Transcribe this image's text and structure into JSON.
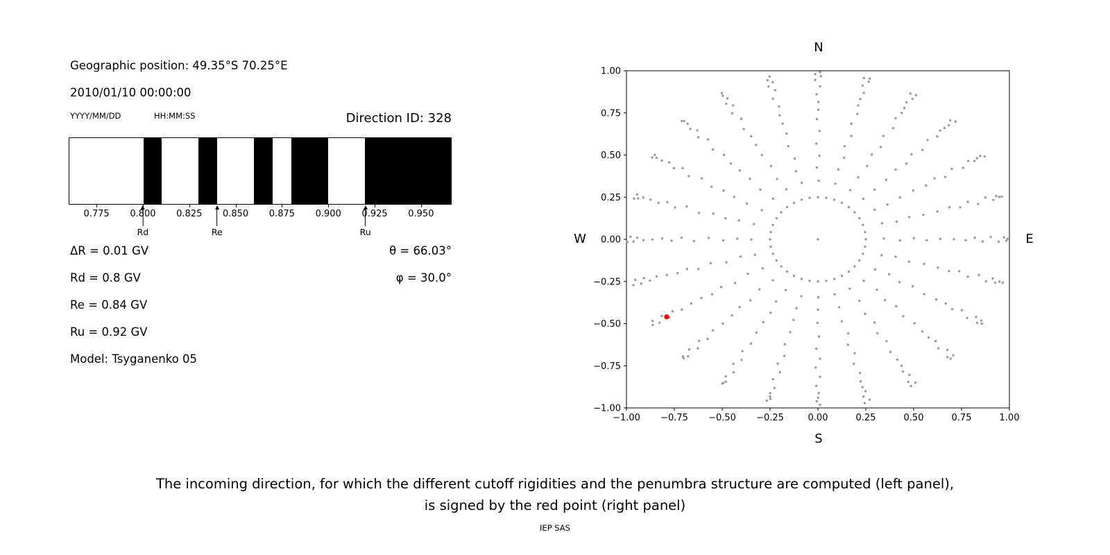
{
  "canvas": {
    "background": "#ffffff"
  },
  "left_panel": {
    "geographic_position": "Geographic position: 49.35°S 70.25°E",
    "datetime": "2010/01/10 00:00:00",
    "date_format_label": "YYYY/MM/DD",
    "time_format_label": "HH:MM:SS",
    "direction_id": "Direction ID: 328",
    "results": [
      "ΔR = 0.01 GV",
      "Rd = 0.8 GV",
      "Re = 0.84 GV",
      "Ru = 0.92 GV",
      "Model: Tsyganenko 05"
    ],
    "theta": "θ = 66.03°",
    "phi": "φ = 30.0°"
  },
  "right_panel": {
    "compass": {
      "north": "N",
      "south": "S",
      "east": "E",
      "west": "W"
    }
  },
  "caption": {
    "line1": "The incoming direction, for which the different cutoff rigidities and the penumbra structure are computed (left panel),",
    "line2": "is signed by the red point (right panel)"
  },
  "footer": "IEP SAS",
  "chart_data": [
    {
      "name": "penumbra-structure",
      "type": "bar",
      "xlim": [
        0.76,
        0.9665
      ],
      "xticks": [
        0.775,
        0.8,
        0.825,
        0.85,
        0.875,
        0.9,
        0.925,
        0.95
      ],
      "xtick_labels": [
        "0.775",
        "0.800",
        "0.825",
        "0.850",
        "0.875",
        "0.900",
        "0.925",
        "0.950"
      ],
      "forbidden_bands_gv": [
        [
          0.8,
          0.81
        ],
        [
          0.83,
          0.84
        ],
        [
          0.86,
          0.87
        ],
        [
          0.88,
          0.9
        ],
        [
          0.92,
          0.9665
        ]
      ],
      "markers": [
        {
          "label": "Rd",
          "value_gv": 0.8
        },
        {
          "label": "Re",
          "value_gv": 0.84
        },
        {
          "label": "Ru",
          "value_gv": 0.92
        }
      ],
      "band_color": "#000000"
    },
    {
      "name": "incoming-directions",
      "type": "scatter",
      "xlim": [
        -1.0,
        1.0
      ],
      "ylim": [
        -1.0,
        1.0
      ],
      "xticks": [
        -1.0,
        -0.75,
        -0.5,
        -0.25,
        0.0,
        0.25,
        0.5,
        0.75,
        1.0
      ],
      "yticks": [
        -1.0,
        -0.75,
        -0.5,
        -0.25,
        0.0,
        0.25,
        0.5,
        0.75,
        1.0
      ],
      "xtick_labels": [
        "−1.00",
        "−0.75",
        "−0.50",
        "−0.25",
        "0.00",
        "0.25",
        "0.50",
        "0.75",
        "1.00"
      ],
      "ytick_labels": [
        "−1.00",
        "−0.75",
        "−0.50",
        "−0.25",
        "0.00",
        "0.25",
        "0.50",
        "0.75",
        "1.00"
      ],
      "pattern": "radial_spokes",
      "spokes": {
        "count": 24,
        "azimuth_start_deg": 0,
        "azimuth_step_deg": 15,
        "zenith_start_deg": 20,
        "zenith_end_deg": 85,
        "zenith_step_deg": 5,
        "radius_rule": "sin(zenith)"
      },
      "inner_ring": {
        "radius": 0.25,
        "points": 36
      },
      "center_point": [
        0.0,
        0.0
      ],
      "red_point": {
        "x": -0.79,
        "y": -0.46
      },
      "dot_color": "#999999",
      "red_point_color": "#ff0000"
    }
  ]
}
